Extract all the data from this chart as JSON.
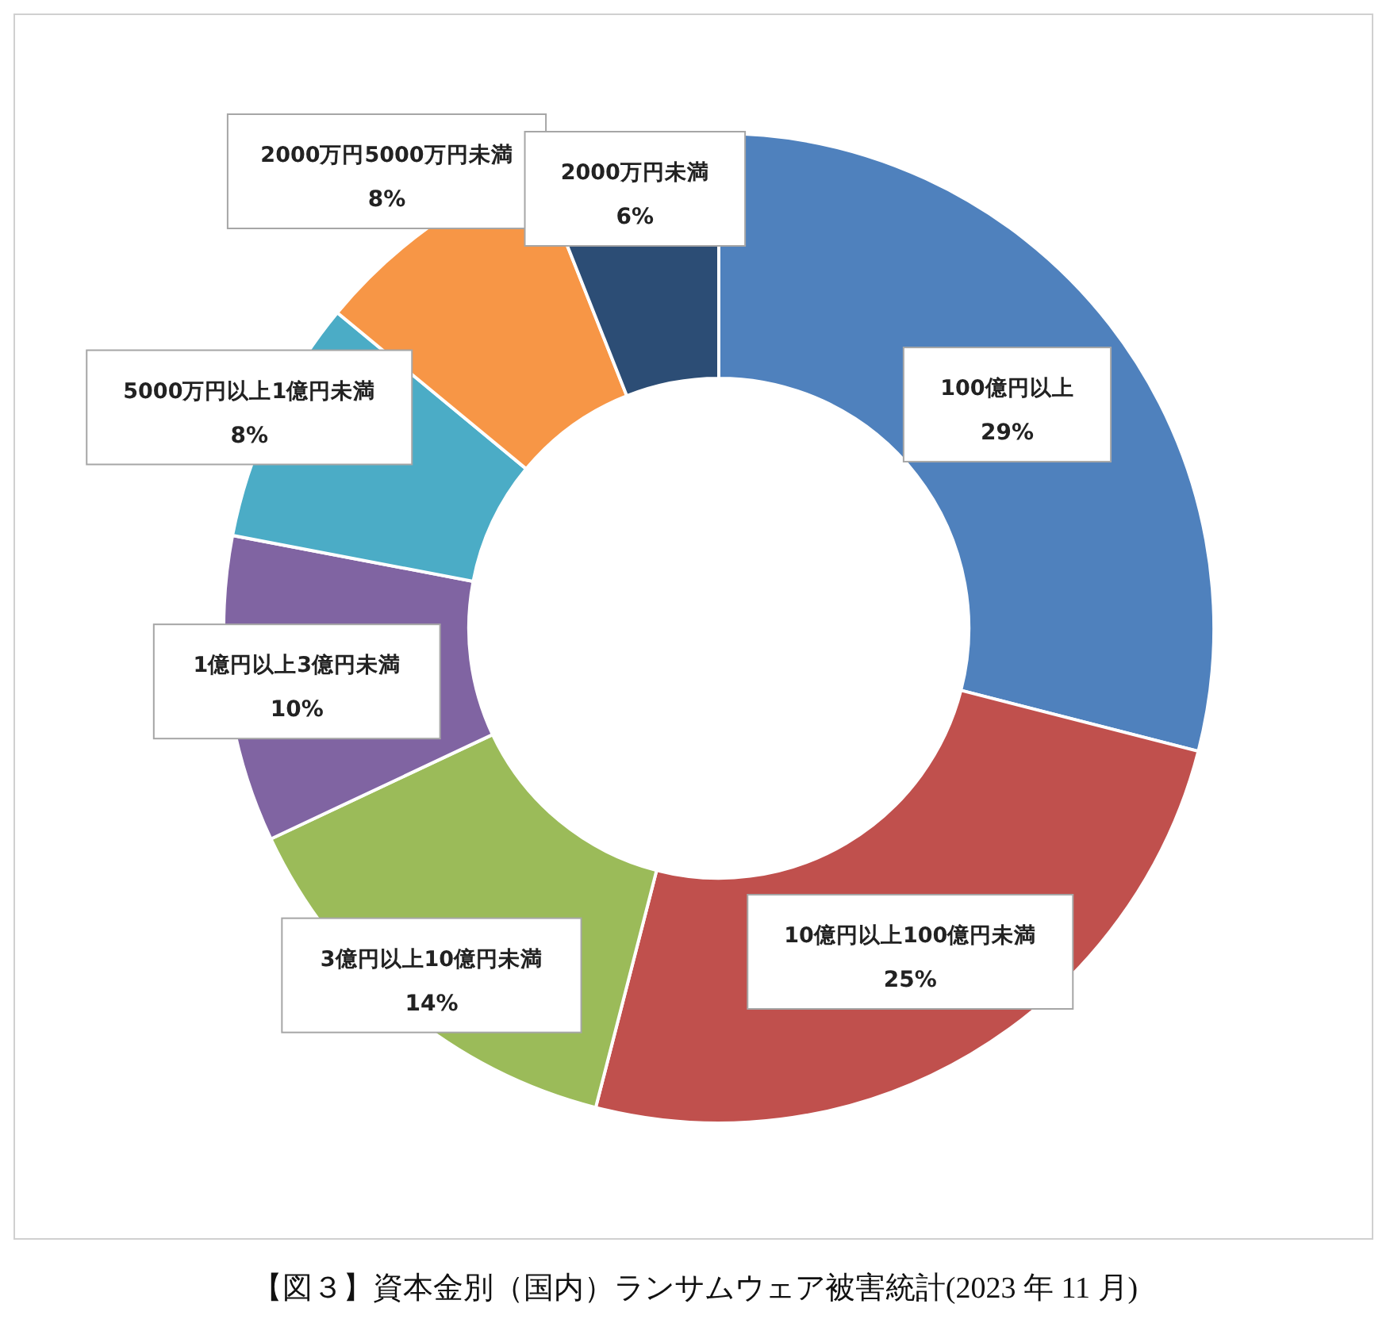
{
  "chart_data": {
    "type": "donut",
    "title": "【図３】資本金別（国内）ランサムウェア被害統計(2023 年 11 月)",
    "categories": [
      "100億円以上",
      "10億円以上100億円未満",
      "3億円以上10億円未満",
      "1億円以上3億円未満",
      "5000万円以上1億円未満",
      "2000万円5000万円未満",
      "2000万円未満"
    ],
    "values": [
      29,
      25,
      14,
      10,
      8,
      8,
      6
    ],
    "colors": [
      "#4f81bd",
      "#c0504d",
      "#9bbb59",
      "#8064a2",
      "#4bacc6",
      "#f79646",
      "#2c4d75"
    ],
    "value_labels": [
      "29%",
      "25%",
      "14%",
      "10%",
      "8%",
      "8%",
      "6%"
    ],
    "legend": false
  }
}
